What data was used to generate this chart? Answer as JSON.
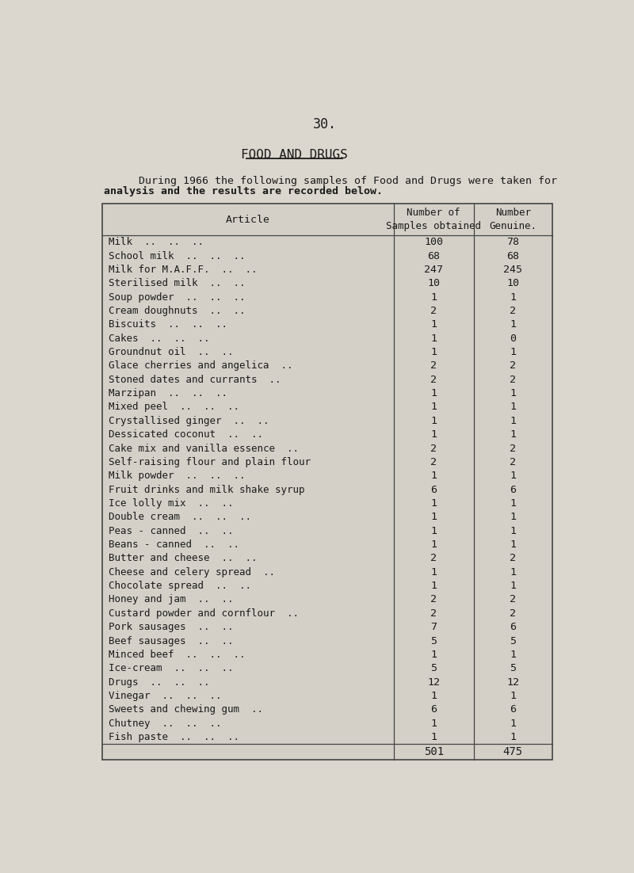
{
  "page_number": "30.",
  "section_title": "FOOD AND DRUGS",
  "intro_line1": "    During 1966 the following samples of Food and Drugs were taken for",
  "intro_line2": "analysis and the results are recorded below.",
  "col1_header": "Article",
  "col2_header": "Number of\nSamples obtained",
  "col3_header": "Number\nGenuine.",
  "rows": [
    [
      "Milk  ..  ..  ..",
      100,
      78
    ],
    [
      "School milk  ..  ..  ..",
      68,
      68
    ],
    [
      "Milk for M.A.F.F.  ..  ..",
      247,
      245
    ],
    [
      "Sterilised milk  ..  ..",
      10,
      10
    ],
    [
      "Soup powder  ..  ..  ..",
      1,
      1
    ],
    [
      "Cream doughnuts  ..  ..",
      2,
      2
    ],
    [
      "Biscuits  ..  ..  ..",
      1,
      1
    ],
    [
      "Cakes  ..  ..  ..",
      1,
      0
    ],
    [
      "Groundnut oil  ..  ..",
      1,
      1
    ],
    [
      "Glace cherries and angelica  ..",
      2,
      2
    ],
    [
      "Stoned dates and currants  ..",
      2,
      2
    ],
    [
      "Marzipan  ..  ..  ..",
      1,
      1
    ],
    [
      "Mixed peel  ..  ..  ..",
      1,
      1
    ],
    [
      "Crystallised ginger  ..  ..",
      1,
      1
    ],
    [
      "Dessicated coconut  ..  ..",
      1,
      1
    ],
    [
      "Cake mix and vanilla essence  ..",
      2,
      2
    ],
    [
      "Self-raising flour and plain flour",
      2,
      2
    ],
    [
      "Milk powder  ..  ..  ..",
      1,
      1
    ],
    [
      "Fruit drinks and milk shake syrup",
      6,
      6
    ],
    [
      "Ice lolly mix  ..  ..",
      1,
      1
    ],
    [
      "Double cream  ..  ..  ..",
      1,
      1
    ],
    [
      "Peas - canned  ..  ..",
      1,
      1
    ],
    [
      "Beans - canned  ..  ..",
      1,
      1
    ],
    [
      "Butter and cheese  ..  ..",
      2,
      2
    ],
    [
      "Cheese and celery spread  ..",
      1,
      1
    ],
    [
      "Chocolate spread  ..  ..",
      1,
      1
    ],
    [
      "Honey and jam  ..  ..",
      2,
      2
    ],
    [
      "Custard powder and cornflour  ..",
      2,
      2
    ],
    [
      "Pork sausages  ..  ..",
      7,
      6
    ],
    [
      "Beef sausages  ..  ..",
      5,
      5
    ],
    [
      "Minced beef  ..  ..  ..",
      1,
      1
    ],
    [
      "Ice-cream  ..  ..  ..",
      5,
      5
    ],
    [
      "Drugs  ..  ..  ..",
      12,
      12
    ],
    [
      "Vinegar  ..  ..  ..",
      1,
      1
    ],
    [
      "Sweets and chewing gum  ..",
      6,
      6
    ],
    [
      "Chutney  ..  ..  ..",
      1,
      1
    ],
    [
      "Fish paste  ..  ..  ..",
      1,
      1
    ]
  ],
  "total_samples": 501,
  "total_genuine": 475,
  "bg_color": "#dbd7ce",
  "table_bg": "#d4d0c8",
  "line_color": "#444444",
  "text_color": "#1a1a1a",
  "ghost_color": "#aaaaaa",
  "font_size_body": 9.5,
  "font_size_header": 9.5,
  "font_size_title": 11.5,
  "font_size_page": 12.0
}
